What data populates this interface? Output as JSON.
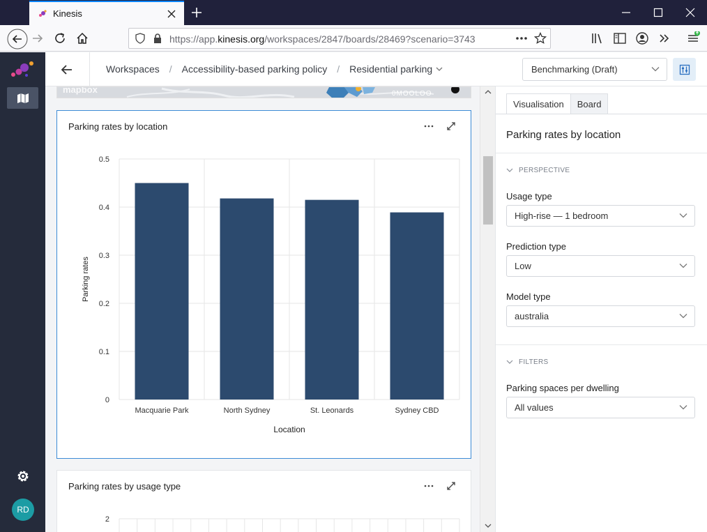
{
  "browser": {
    "tab_title": "Kinesis",
    "url_prefix": "https://app.",
    "url_domain": "kinesis.org",
    "url_path": "/workspaces/2847/boards/28469?scenario=3743"
  },
  "user": {
    "initials": "RD"
  },
  "header": {
    "breadcrumbs": [
      "Workspaces",
      "Accessibility-based parking policy",
      "Residential parking"
    ],
    "scenario": "Benchmarking (Draft)"
  },
  "map_strip": {
    "attribution": "mapbox",
    "scale_text": "0MOOLOO"
  },
  "cards": [
    {
      "title": "Parking rates by location"
    },
    {
      "title": "Parking rates by usage type"
    }
  ],
  "chart_data": [
    {
      "type": "bar",
      "title": "Parking rates by location",
      "xlabel": "Location",
      "ylabel": "Parking rates",
      "categories": [
        "Macquarie Park",
        "North Sydney",
        "St. Leonards",
        "Sydney CBD"
      ],
      "values": [
        0.45,
        0.418,
        0.415,
        0.389
      ],
      "ylim": [
        0,
        0.5
      ],
      "yticks": [
        "0",
        "0.1",
        "0.2",
        "0.3",
        "0.4",
        "0.5"
      ],
      "grid": true,
      "bar_color": "#2c4a6e"
    },
    {
      "type": "bar",
      "title": "Parking rates by usage type",
      "yticks_visible": [
        "2"
      ]
    }
  ],
  "panel": {
    "tabs": [
      "Visualisation",
      "Board"
    ],
    "title": "Parking rates by location",
    "perspective_label": "PERSPECTIVE",
    "fields": [
      {
        "label": "Usage type",
        "value": "High-rise — 1 bedroom"
      },
      {
        "label": "Prediction type",
        "value": "Low"
      },
      {
        "label": "Model type",
        "value": "australia"
      }
    ],
    "filters_label": "FILTERS",
    "filter_fields": [
      {
        "label": "Parking spaces per dwelling",
        "value": "All values"
      }
    ]
  },
  "colors": {
    "accent": "#3d8bd6",
    "sidebar": "#252b3b",
    "bar": "#2c4a6e"
  }
}
